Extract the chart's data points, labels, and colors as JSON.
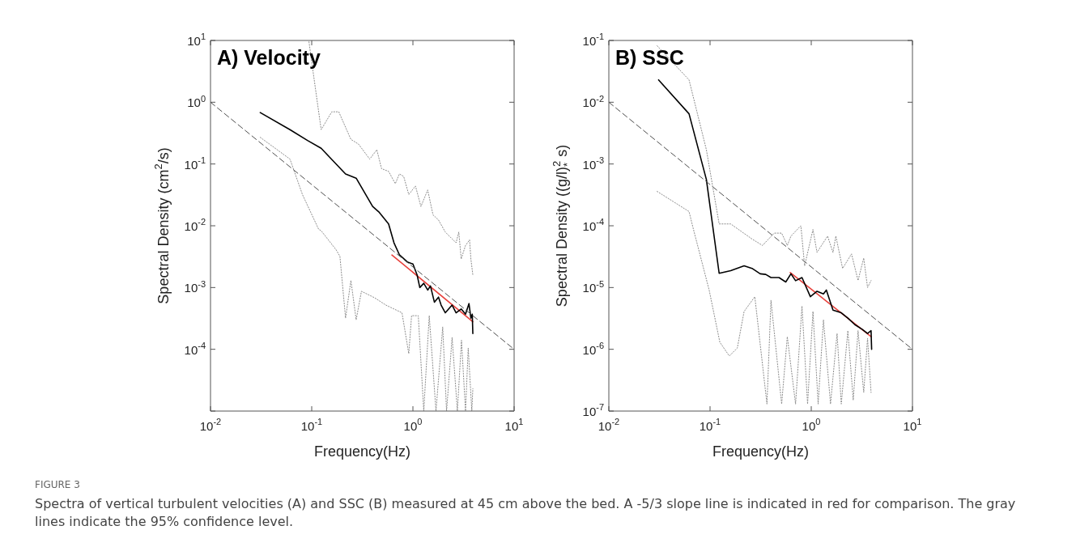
{
  "chart_data": [
    {
      "type": "line",
      "title": "A) Velocity",
      "xlabel": "Frequency(Hz)",
      "ylabel": "Spectral Density (cm$^{2}$/s)",
      "log": "xy",
      "grid": false,
      "legend": false,
      "marker": "none",
      "xlim": [
        0.01,
        10
      ],
      "xticks": [
        {
          "value": 0.01,
          "label": "10$^{-2}$"
        },
        {
          "value": 0.1,
          "label": "10$^{-1}$"
        },
        {
          "value": 1,
          "label": "10$^{0}$"
        },
        {
          "value": 10,
          "label": "10$^{1}$"
        }
      ],
      "ylim": [
        1e-05,
        10
      ],
      "yticks": [
        {
          "value": 1e-05,
          "label": null
        },
        {
          "value": 0.0001,
          "label": "10$^{-4}$"
        },
        {
          "value": 0.001,
          "label": "10$^{-3}$"
        },
        {
          "value": 0.01,
          "label": "10$^{-2}$"
        },
        {
          "value": 0.1,
          "label": "10$^{-1}$"
        },
        {
          "value": 1,
          "label": "10$^{0}$"
        },
        {
          "value": 10,
          "label": "10$^{1}$"
        }
      ],
      "annotations": [
        "FIGURE 3",
        "Spectra of vertical turbulent velocities (A) and SSC (B) measured at 45 cm above the bed. A -5/3 slope line is indicated in red for comparison. The gray lines indicate the 95% confidence level."
      ],
      "series": [
        {
          "color": "#8c8c8c",
          "line_style": "dotted",
          "x": [
            0.094,
            0.1,
            0.124,
            0.158,
            0.185,
            0.244,
            0.29,
            0.374,
            0.44,
            0.49,
            0.575,
            0.67,
            0.735,
            0.81,
            0.91,
            1.06,
            1.2,
            1.4,
            1.58,
            1.79,
            2.09,
            2.67,
            2.84,
            3.0,
            3.31,
            3.63,
            3.74,
            3.91
          ],
          "values": [
            9.5,
            4.5,
            0.36,
            0.7,
            0.7,
            0.25,
            0.21,
            0.12,
            0.17,
            0.084,
            0.076,
            0.048,
            0.069,
            0.063,
            0.032,
            0.044,
            0.0205,
            0.038,
            0.015,
            0.0124,
            0.0079,
            0.0053,
            0.0079,
            0.0029,
            0.0048,
            0.0059,
            0.0029,
            0.0016
          ]
        },
        {
          "color": "#8c8c8c",
          "line_style": "dotted",
          "x": [
            0.031,
            0.061,
            0.081,
            0.117,
            0.124,
            0.174,
            0.19,
            0.216,
            0.244,
            0.275,
            0.31,
            0.42,
            0.54,
            0.78,
            0.91,
            0.97,
            1.13,
            1.28,
            1.45,
            1.69,
            1.97,
            2.15,
            2.44,
            2.75,
            3.02,
            3.31,
            3.52,
            3.82,
            3.91
          ],
          "values": [
            0.27,
            0.12,
            0.032,
            0.0088,
            0.0083,
            0.0041,
            0.0032,
            0.00032,
            0.0013,
            0.0003,
            0.00087,
            0.00068,
            0.00052,
            0.00039,
            8.5e-05,
            0.00035,
            0.00035,
            1e-05,
            0.00035,
            1e-05,
            0.00023,
            1e-05,
            0.000155,
            1e-05,
            0.00014,
            1e-05,
            0.000105,
            1e-05,
            2.3e-05
          ]
        },
        {
          "color": "#4d4d4d",
          "line_style": "dashed",
          "x": [
            0.01,
            10
          ],
          "values": [
            1,
            0.0001
          ]
        },
        {
          "color": "#000000",
          "line_style": "solid",
          "x": [
            0.031,
            0.061,
            0.091,
            0.124,
            0.216,
            0.275,
            0.4,
            0.46,
            0.575,
            0.65,
            0.735,
            0.88,
            1.0,
            1.1,
            1.17,
            1.28,
            1.4,
            1.49,
            1.63,
            1.79,
            1.9,
            2.09,
            2.44,
            2.67,
            3.0,
            3.31,
            3.58,
            3.74,
            3.86,
            3.91
          ],
          "values": [
            0.68,
            0.36,
            0.24,
            0.18,
            0.069,
            0.059,
            0.0206,
            0.0168,
            0.0107,
            0.0053,
            0.0034,
            0.0026,
            0.0024,
            0.0016,
            0.001,
            0.00117,
            0.00091,
            0.00106,
            0.00058,
            0.0007,
            0.00052,
            0.00039,
            0.00052,
            0.00039,
            0.00045,
            0.00037,
            0.00055,
            0.00032,
            0.00037,
            0.00018
          ]
        },
        {
          "color": "#e8413c",
          "line_style": "solid",
          "x": [
            0.62,
            3.91
          ],
          "values": [
            0.00336,
            0.00028
          ]
        }
      ]
    },
    {
      "type": "line",
      "title": "B) SSC",
      "xlabel": "Frequency(Hz)",
      "ylabel": "Spectral Density ((g/l)$^{2}$$_{*}$ s)",
      "log": "xy",
      "grid": false,
      "legend": false,
      "marker": "none",
      "xlim": [
        0.01,
        10
      ],
      "xticks": [
        {
          "value": 0.01,
          "label": "10$^{-2}$"
        },
        {
          "value": 0.1,
          "label": "10$^{-1}$"
        },
        {
          "value": 1,
          "label": "10$^{0}$"
        },
        {
          "value": 10,
          "label": "10$^{1}$"
        }
      ],
      "ylim": [
        1e-07,
        0.1
      ],
      "yticks": [
        {
          "value": 1e-07,
          "label": "10$^{-7}$"
        },
        {
          "value": 1e-06,
          "label": "10$^{-6}$"
        },
        {
          "value": 1e-05,
          "label": "10$^{-5}$"
        },
        {
          "value": 0.0001,
          "label": "10$^{-4}$"
        },
        {
          "value": 0.001,
          "label": "10$^{-3}$"
        },
        {
          "value": 0.01,
          "label": "10$^{-2}$"
        },
        {
          "value": 0.1,
          "label": "10$^{-1}$"
        }
      ],
      "series": [
        {
          "color": "#8c8c8c",
          "line_style": "dotted",
          "x": [
            0.03,
            0.062,
            0.092,
            0.123,
            0.16,
            0.26,
            0.33,
            0.43,
            0.51,
            0.58,
            0.63,
            0.79,
            0.86,
            1.04,
            1.14,
            1.45,
            1.64,
            1.75,
            2.04,
            2.5,
            2.9,
            3.3,
            3.6,
            3.9
          ],
          "values": [
            0.082,
            0.023,
            0.0017,
            0.000107,
            0.000107,
            6.1e-05,
            4.8e-05,
            7.6e-05,
            7.6e-05,
            4.8e-05,
            6.8e-05,
            0.0001,
            2.24e-05,
            8.7e-05,
            3.7e-05,
            6.8e-05,
            3.7e-05,
            6.8e-05,
            2.04e-05,
            3.5e-05,
            1.3e-05,
            3e-05,
            1e-05,
            1.3e-05
          ]
        },
        {
          "color": "#8c8c8c",
          "line_style": "dotted",
          "x": [
            0.03,
            0.062,
            0.068,
            0.098,
            0.125,
            0.155,
            0.186,
            0.217,
            0.277,
            0.365,
            0.4,
            0.51,
            0.58,
            0.7,
            0.81,
            0.92,
            1.04,
            1.17,
            1.32,
            1.55,
            1.8,
            1.98,
            2.3,
            2.6,
            2.9,
            3.3,
            3.6,
            3.9
          ],
          "values": [
            0.00036,
            0.00017,
            9.2e-05,
            9.1e-06,
            1.3e-06,
            7.8e-07,
            1.05e-06,
            4.1e-06,
            7.1e-06,
            1.3e-07,
            6.2e-06,
            1.3e-07,
            1.6e-06,
            1.3e-07,
            5e-06,
            1.3e-07,
            4.1e-06,
            1.3e-07,
            3e-06,
            1.3e-07,
            1.8e-06,
            1.3e-07,
            2e-06,
            1.5e-07,
            2e-06,
            2e-07,
            1.5e-06,
            2e-07
          ]
        },
        {
          "color": "#4d4d4d",
          "line_style": "dashed",
          "x": [
            0.01,
            10
          ],
          "values": [
            0.01,
            1e-06
          ]
        },
        {
          "color": "#000000",
          "line_style": "solid",
          "x": [
            0.031,
            0.062,
            0.092,
            0.123,
            0.16,
            0.217,
            0.26,
            0.313,
            0.355,
            0.4,
            0.48,
            0.56,
            0.63,
            0.7,
            0.81,
            0.98,
            1.14,
            1.32,
            1.41,
            1.64,
            1.98,
            2.3,
            2.7,
            3.2,
            3.6,
            3.9,
            3.95
          ],
          "values": [
            0.023,
            0.0065,
            0.00056,
            1.7e-05,
            1.88e-05,
            2.24e-05,
            2.04e-05,
            1.67e-05,
            1.63e-05,
            1.45e-05,
            1.45e-05,
            1.23e-05,
            1.67e-05,
            1.29e-05,
            1.45e-05,
            7.1e-06,
            8.7e-06,
            7.9e-06,
            9.1e-06,
            4.3e-06,
            3.9e-06,
            3.2e-06,
            2.5e-06,
            2.1e-06,
            1.8e-06,
            2e-06,
            1e-06
          ]
        },
        {
          "color": "#e8413c",
          "line_style": "solid",
          "x": [
            0.62,
            3.91
          ],
          "values": [
            1.75e-05,
            1.6e-06
          ]
        }
      ]
    }
  ]
}
